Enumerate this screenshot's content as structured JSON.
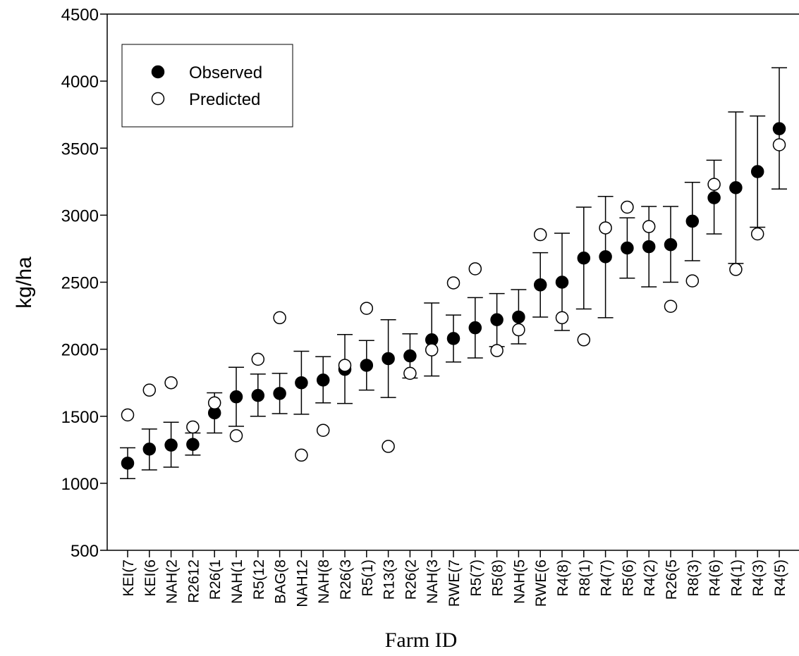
{
  "chart_data": {
    "type": "scatter",
    "title": "",
    "xlabel": "Farm ID",
    "ylabel": "kg/ha",
    "ylim": [
      500,
      4500
    ],
    "yticks": [
      500,
      1000,
      1500,
      2000,
      2500,
      3000,
      3500,
      4000,
      4500
    ],
    "yticks_labels": [
      "500",
      "1000",
      "1500",
      "2000",
      "2500",
      "3000",
      "3500",
      "4000",
      "4500"
    ],
    "categories": [
      "KEI(7",
      "KEI(6",
      "NAH(2",
      "R2612",
      "R26(1",
      "NAH(1",
      "R5(12",
      "BAG(8",
      "NAH12",
      "NAH(8",
      "R26(3",
      "R5(1)",
      "R13(3",
      "R26(2",
      "NAH(3",
      "RWE(7",
      "R5(7)",
      "R5(8)",
      "NAH(5",
      "RWE(6",
      "R4(8)",
      "R8(1)",
      "R4(7)",
      "R5(6)",
      "R4(2)",
      "R26(5",
      "R8(3)",
      "R4(6)",
      "R4(1)",
      "R4(3)",
      "R4(5)"
    ],
    "legend_position": "top-left",
    "grid": false,
    "series": [
      {
        "name": "Observed",
        "marker": "filled-circle",
        "values": [
          1150,
          1255,
          1285,
          1290,
          1525,
          1645,
          1655,
          1670,
          1750,
          1770,
          1850,
          1880,
          1930,
          1950,
          2070,
          2080,
          2160,
          2220,
          2240,
          2480,
          2500,
          2680,
          2690,
          2755,
          2765,
          2780,
          2955,
          3130,
          3205,
          3325,
          3645
        ],
        "error_low": [
          1035,
          1100,
          1120,
          1210,
          1375,
          1425,
          1500,
          1520,
          1515,
          1600,
          1595,
          1695,
          1640,
          1785,
          1800,
          1905,
          1935,
          2020,
          2040,
          2240,
          2140,
          2300,
          2235,
          2530,
          2465,
          2500,
          2660,
          2860,
          2640,
          2910,
          3195
        ],
        "error_high": [
          1265,
          1405,
          1455,
          1375,
          1675,
          1865,
          1815,
          1820,
          1985,
          1945,
          2110,
          2065,
          2220,
          2115,
          2345,
          2255,
          2385,
          2415,
          2445,
          2720,
          2865,
          3060,
          3140,
          2980,
          3065,
          3065,
          3245,
          3410,
          3770,
          3740,
          4100
        ]
      },
      {
        "name": "Predicted",
        "marker": "open-circle",
        "values": [
          1510,
          1695,
          1750,
          1420,
          1600,
          1355,
          1925,
          2235,
          1210,
          1395,
          1880,
          2305,
          1275,
          1820,
          1995,
          2495,
          2600,
          1990,
          2145,
          2855,
          2235,
          2070,
          2905,
          3060,
          2915,
          2320,
          2510,
          3230,
          2595,
          2860,
          3525
        ]
      }
    ]
  },
  "colors": {
    "axis": "#000000",
    "observed_fill": "#000000",
    "predicted_fill": "#ffffff",
    "background": "#ffffff"
  }
}
